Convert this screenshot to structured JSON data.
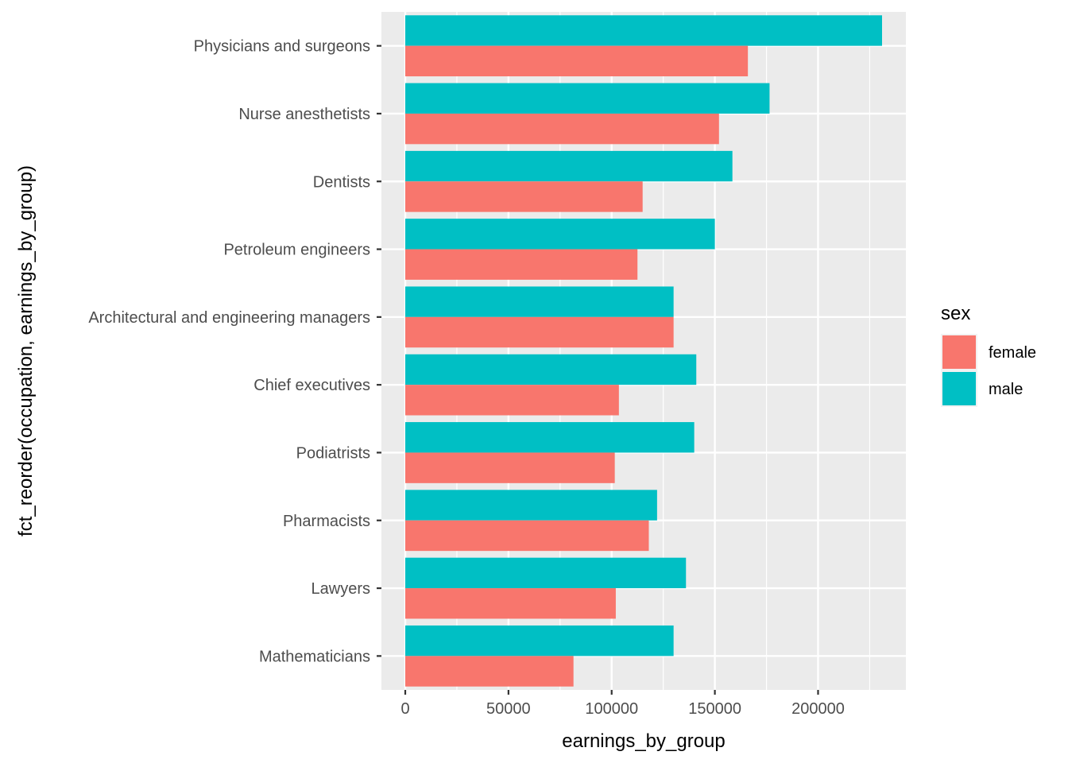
{
  "chart_data": {
    "type": "bar",
    "orientation": "horizontal",
    "categories": [
      "Physicians and surgeons",
      "Nurse anesthetists",
      "Dentists",
      "Petroleum engineers",
      "Architectural and engineering managers",
      "Chief executives",
      "Podiatrists",
      "Pharmacists",
      "Lawyers",
      "Mathematicians"
    ],
    "series": [
      {
        "name": "female",
        "color": "#F8766D",
        "values": [
          166000,
          152000,
          115000,
          112500,
          130000,
          103500,
          101500,
          118000,
          102000,
          81500
        ]
      },
      {
        "name": "male",
        "color": "#00BFC4",
        "values": [
          231000,
          176500,
          158500,
          150000,
          130000,
          141000,
          140000,
          122000,
          136000,
          130000
        ]
      }
    ],
    "xlabel": "earnings_by_group",
    "ylabel": "fct_reorder(occupation, earnings_by_group)",
    "xlim": [
      -11550,
      242550
    ],
    "x_ticks": [
      0,
      50000,
      100000,
      150000,
      200000
    ],
    "x_tick_labels": [
      "0",
      "50000",
      "100000",
      "150000",
      "200000"
    ],
    "grid": true,
    "legend": {
      "title": "sex",
      "position": "right",
      "entries": [
        "female",
        "male"
      ]
    },
    "panel_background": "#EBEBEB",
    "gridline_color": "#FFFFFF"
  }
}
